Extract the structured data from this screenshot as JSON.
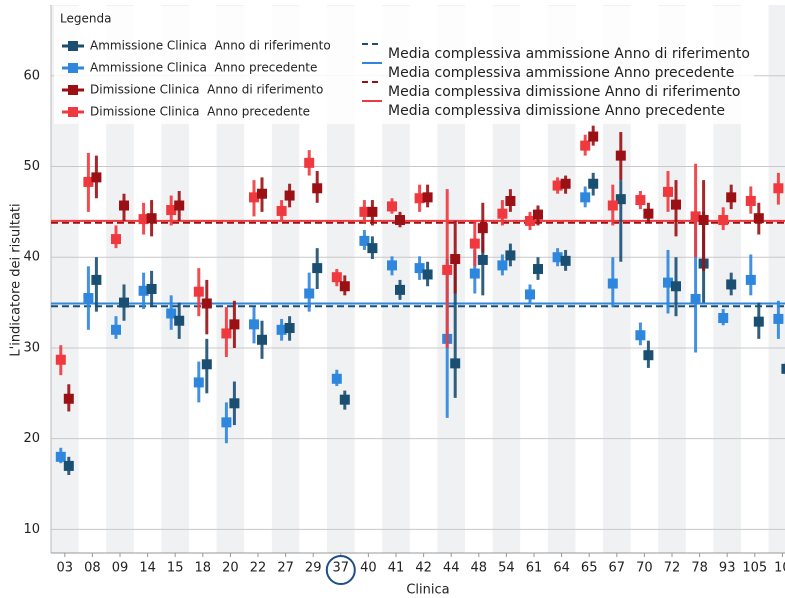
{
  "chart_data": {
    "type": "errorbar",
    "x_label": "Clinica",
    "y_label": "L'indicatore dei risultati",
    "legend_title": "Legenda",
    "legend": "upper left",
    "grid": true,
    "highlight": "37",
    "categories": [
      "03",
      "08",
      "09",
      "14",
      "15",
      "18",
      "20",
      "22",
      "27",
      "29",
      "37",
      "40",
      "41",
      "42",
      "44",
      "48",
      "54",
      "61",
      "64",
      "65",
      "67",
      "70",
      "72",
      "78",
      "93",
      "105",
      "10"
    ],
    "ylim": [
      7.4,
      67.8
    ],
    "yticks": [
      10,
      20,
      30,
      40,
      50,
      60
    ],
    "series": [
      {
        "name": "Ammissione Clinica  Anno precedente",
        "color": "#2f86dd",
        "side": "left",
        "values": [
          18,
          35.5,
          32,
          36.3,
          33.8,
          26.2,
          21.8,
          32.6,
          32,
          36,
          26.6,
          41.8,
          39.1,
          38.8,
          31,
          38.2,
          39.1,
          35.9,
          40,
          46.6,
          37.1,
          31.4,
          37.2,
          35.4,
          33.3,
          37.5,
          33.2
        ],
        "lower": [
          17.3,
          32,
          31,
          34.3,
          32,
          24,
          19.5,
          30.5,
          30.8,
          34,
          25.8,
          40.8,
          38,
          37.5,
          22.3,
          36,
          38,
          35,
          39,
          45.5,
          34.5,
          30.3,
          33.8,
          29.5,
          32.5,
          35.8,
          31
        ],
        "upper": [
          19,
          39,
          33.5,
          38.3,
          35.8,
          28.5,
          24,
          34.5,
          33.2,
          38.3,
          27.6,
          43,
          40.1,
          40.1,
          39.8,
          40.8,
          40.3,
          37,
          41,
          47.8,
          40,
          32.8,
          40.8,
          44.8,
          34.3,
          40.3,
          35.2
        ]
      },
      {
        "name": "Ammissione Clinica  Anno di riferimento",
        "color": "#1b4f72",
        "side": "right",
        "values": [
          17,
          37.5,
          35,
          36.5,
          33,
          28.2,
          23.9,
          30.9,
          32.2,
          38.8,
          24.3,
          41,
          36.4,
          38.1,
          28.3,
          39.7,
          40.2,
          38.7,
          39.6,
          48.1,
          46.4,
          29.2,
          36.8,
          39.3,
          37,
          32.9,
          27.7
        ],
        "lower": [
          16,
          34,
          33,
          34.5,
          31,
          25,
          21.5,
          28.8,
          30.8,
          36.5,
          23.2,
          39.8,
          35.3,
          36.8,
          24.5,
          35.8,
          39,
          37.5,
          38.5,
          46.8,
          39.5,
          27.8,
          33.5,
          35,
          35.8,
          31,
          27
        ],
        "upper": [
          18,
          40,
          37,
          38.5,
          35,
          31,
          26.3,
          33,
          33.5,
          41,
          25.3,
          42.3,
          37.5,
          39.5,
          40,
          43.5,
          41.5,
          40,
          40.8,
          49.3,
          48.5,
          30.8,
          40,
          45,
          38.3,
          35,
          28.5
        ]
      },
      {
        "name": "Dimissione Clinica  Anno precedente",
        "color": "#f0393e",
        "side": "left",
        "values": [
          28.7,
          48.3,
          42,
          44.2,
          45.2,
          36.2,
          31.6,
          46.6,
          45.1,
          50.4,
          37.8,
          45,
          45.6,
          46.5,
          38.6,
          41.5,
          44.8,
          44,
          47.9,
          52.3,
          45.7,
          46.3,
          47.2,
          44.5,
          44.1,
          46.2,
          47.6
        ],
        "lower": [
          27,
          45,
          41,
          42.5,
          43.5,
          33.5,
          29,
          44.5,
          44,
          49,
          36.8,
          43.8,
          44.8,
          45,
          30,
          39,
          43.5,
          43,
          47,
          51.2,
          43.5,
          45.3,
          45,
          40,
          43,
          44.8,
          45.8
        ],
        "upper": [
          30.3,
          51.5,
          43.5,
          46,
          46.8,
          38.8,
          34.5,
          48.5,
          46.3,
          51.8,
          38.7,
          46.3,
          46.5,
          48,
          47.5,
          44,
          46.3,
          45,
          48.8,
          53.5,
          48,
          47.3,
          49.5,
          50.3,
          45.5,
          47.8,
          49.3
        ]
      },
      {
        "name": "Dimissione Clinica  Anno di riferimento",
        "color": "#9b1014",
        "side": "right",
        "values": [
          24.4,
          48.8,
          45.7,
          44.3,
          45.7,
          34.9,
          32.6,
          47,
          46.8,
          47.6,
          36.8,
          45,
          44.1,
          46.6,
          39.8,
          43.2,
          46.2,
          44.7,
          48.1,
          53.3,
          51.2,
          44.8,
          45.8,
          44.1,
          46.6,
          44.3,
          null
        ],
        "lower": [
          23,
          46.5,
          44,
          42.3,
          44,
          31.5,
          30,
          45,
          45.5,
          46,
          35.8,
          43.5,
          43.3,
          45.5,
          36,
          40.5,
          45,
          43.5,
          47,
          52.3,
          48.5,
          43.8,
          42.3,
          38.5,
          45.3,
          42.5,
          null
        ],
        "upper": [
          26,
          51.2,
          47,
          46.3,
          47.3,
          37.5,
          35.2,
          48.8,
          48.1,
          49.5,
          38,
          46.3,
          45,
          48,
          44,
          46,
          47.5,
          45.7,
          49,
          54.5,
          53.8,
          46,
          48.5,
          48.5,
          48,
          46,
          null
        ]
      }
    ],
    "mean_lines": [
      {
        "name": "Media complessiva ammissione Anno di riferimento",
        "color": "#1b4f72",
        "dashed": true,
        "value": 34.6
      },
      {
        "name": "Media complessiva ammissione Anno precedente",
        "color": "#2f86dd",
        "dashed": false,
        "value": 34.9
      },
      {
        "name": "Media complessiva dimissione Anno di riferimento",
        "color": "#9b1014",
        "dashed": true,
        "value": 43.8
      },
      {
        "name": "Media complessiva dimissione Anno precedente",
        "color": "#f0393e",
        "dashed": false,
        "value": 44.0
      }
    ]
  }
}
